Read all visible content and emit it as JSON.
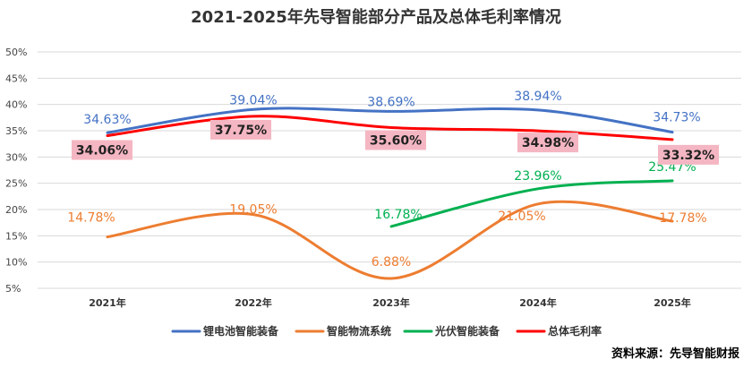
{
  "chart_data": {
    "type": "line",
    "title": "2021-2025年先导智能部分产品及总体毛利率情况",
    "categories": [
      "2021年",
      "2022年",
      "2023年",
      "2024年",
      "2025年"
    ],
    "y_ticks": [
      "50%",
      "45%",
      "40%",
      "35%",
      "30%",
      "25%",
      "20%",
      "15%",
      "10%",
      "5%"
    ],
    "ylim": [
      5,
      50
    ],
    "grid": true,
    "series": [
      {
        "name": "锂电池智能装备",
        "color": "#4472C4",
        "values": [
          34.63,
          39.04,
          38.69,
          38.94,
          34.73
        ],
        "labels": [
          "34.63%",
          "39.04%",
          "38.69%",
          "38.94%",
          "34.73%"
        ],
        "label_style": "plain"
      },
      {
        "name": "智能物流系统",
        "color": "#ED7D31",
        "values": [
          14.78,
          19.05,
          6.88,
          21.05,
          17.78
        ],
        "labels": [
          "14.78%",
          "19.05%",
          "6.88%",
          "21.05%",
          "17.78%"
        ],
        "label_style": "plain"
      },
      {
        "name": "光伏智能装备",
        "color": "#00B050",
        "values": [
          null,
          null,
          16.78,
          23.96,
          25.47
        ],
        "labels": [
          null,
          null,
          "16.78%",
          "23.96%",
          "25.47%"
        ],
        "label_style": "plain"
      },
      {
        "name": "总体毛利率",
        "color": "#FF0000",
        "values": [
          34.06,
          37.75,
          35.6,
          34.98,
          33.32
        ],
        "labels": [
          "34.06%",
          "37.75%",
          "35.60%",
          "34.98%",
          "33.32%"
        ],
        "label_style": "boxed",
        "label_box_color": "#F4B6C2"
      }
    ],
    "legend_position": "bottom"
  },
  "source": "资料来源：先导智能财报"
}
